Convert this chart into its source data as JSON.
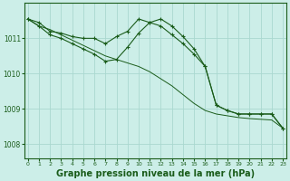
{
  "background_color": "#cceee8",
  "grid_color": "#aad8d0",
  "line_color": "#1a5c1a",
  "xlabel": "Graphe pression niveau de la mer (hPa)",
  "xlabel_fontsize": 7,
  "xtick_labels": [
    "0",
    "1",
    "2",
    "3",
    "4",
    "5",
    "6",
    "7",
    "8",
    "9",
    "10",
    "11",
    "12",
    "13",
    "14",
    "15",
    "16",
    "17",
    "18",
    "19",
    "20",
    "21",
    "22",
    "23"
  ],
  "ytick_values": [
    1008,
    1009,
    1010,
    1011
  ],
  "ylim": [
    1007.6,
    1012.0
  ],
  "xlim": [
    -0.3,
    23.3
  ],
  "series1_x": [
    0,
    1,
    2,
    3,
    4,
    5,
    6,
    7,
    8,
    9,
    10,
    11,
    12,
    13,
    14,
    15,
    16,
    17,
    18,
    19,
    20,
    21,
    22,
    23
  ],
  "series1_y": [
    1011.55,
    1011.45,
    1011.2,
    1011.15,
    1011.05,
    1011.0,
    1011.0,
    1010.85,
    1011.05,
    1011.2,
    1011.55,
    1011.45,
    1011.35,
    1011.1,
    1010.85,
    1010.55,
    1010.2,
    1009.1,
    1008.95,
    1008.85,
    1008.85,
    1008.85,
    1008.85,
    1008.45
  ],
  "series2_x": [
    0,
    1,
    2,
    3,
    4,
    5,
    6,
    7,
    8,
    9,
    10,
    11,
    12,
    13,
    14,
    15,
    16,
    17,
    18,
    19,
    20,
    21,
    22,
    23
  ],
  "series2_y": [
    1011.55,
    1011.35,
    1011.25,
    1011.1,
    1010.95,
    1010.8,
    1010.65,
    1010.5,
    1010.4,
    1010.3,
    1010.2,
    1010.05,
    1009.85,
    1009.65,
    1009.4,
    1009.15,
    1008.95,
    1008.85,
    1008.8,
    1008.75,
    1008.72,
    1008.7,
    1008.68,
    1008.45
  ],
  "series3_x": [
    0,
    1,
    2,
    3,
    4,
    5,
    6,
    7,
    8,
    9,
    10,
    11,
    12,
    13,
    14,
    15,
    16,
    17,
    18,
    19,
    20,
    21,
    22,
    23
  ],
  "series3_y": [
    1011.55,
    1011.35,
    1011.1,
    1011.0,
    1010.85,
    1010.7,
    1010.55,
    1010.35,
    1010.4,
    1010.75,
    1011.15,
    1011.45,
    1011.55,
    1011.35,
    1011.05,
    1010.7,
    1010.2,
    1009.1,
    1008.95,
    1008.85,
    1008.85,
    1008.85,
    1008.85,
    1008.45
  ]
}
